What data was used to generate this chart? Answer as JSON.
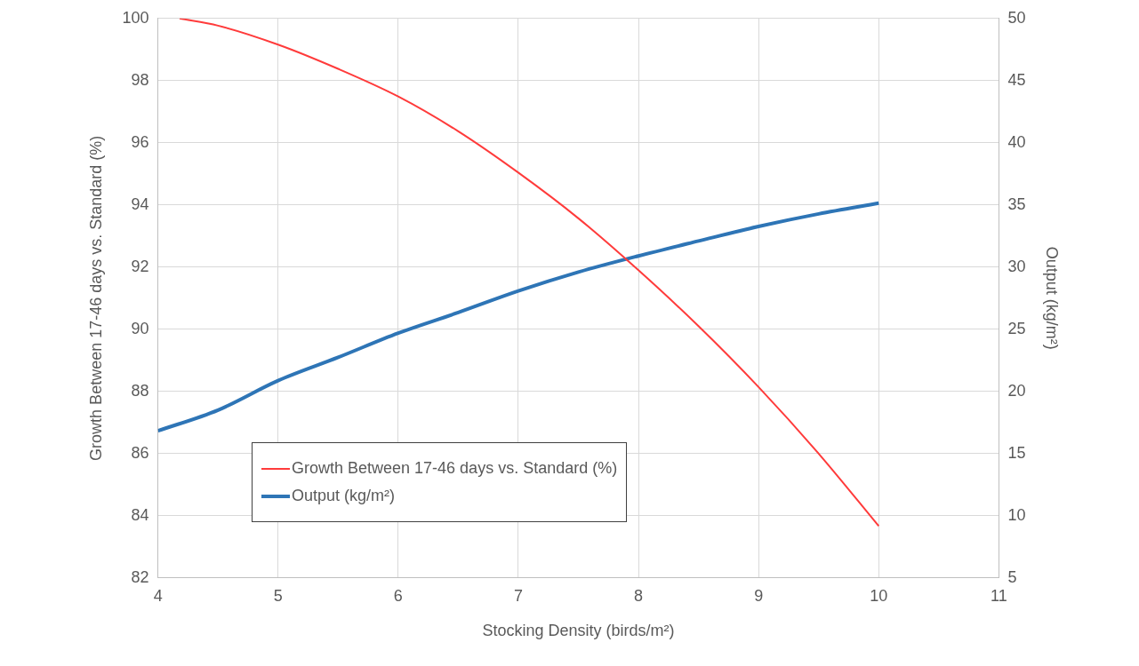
{
  "chart_data": {
    "type": "line",
    "xlabel": "Stocking Density (birds/m²)",
    "ylabel": "Growth Between 17-46 days vs. Standard (%)",
    "y2label": "Output (kg/m²)",
    "xlim": [
      4,
      11
    ],
    "xticks": [
      4,
      5,
      6,
      7,
      8,
      9,
      10,
      11
    ],
    "ylim": [
      82,
      100
    ],
    "yticks": [
      82,
      84,
      86,
      88,
      90,
      92,
      94,
      96,
      98,
      100
    ],
    "y2lim": [
      5,
      50
    ],
    "y2ticks": [
      5,
      10,
      15,
      20,
      25,
      30,
      35,
      40,
      45,
      50
    ],
    "grid": true,
    "legend": "bottom left",
    "marker": "none",
    "series": [
      {
        "name": "Growth Between 17-46 days vs. Standard (%)",
        "color": "#ff3b3b",
        "x": [
          4.18,
          4.5,
          5,
          5.5,
          6,
          6.5,
          7,
          7.5,
          8,
          8.5,
          9,
          9.5,
          10
        ],
        "values": [
          100,
          99.77,
          99.16,
          98.38,
          97.49,
          96.37,
          95.04,
          93.57,
          91.9,
          90.1,
          88.14,
          86.0,
          83.67
        ]
      },
      {
        "name": "Output (kg/m²)",
        "color": "#2e75b6",
        "axis": "y2",
        "x": [
          4,
          4.5,
          5,
          5.5,
          6,
          6.5,
          7,
          7.5,
          8,
          8.5,
          9,
          9.5,
          10
        ],
        "values": [
          16.83,
          18.5,
          20.87,
          22.74,
          24.69,
          26.35,
          28.08,
          29.6,
          30.9,
          32.1,
          33.27,
          34.28,
          35.14
        ]
      }
    ]
  }
}
